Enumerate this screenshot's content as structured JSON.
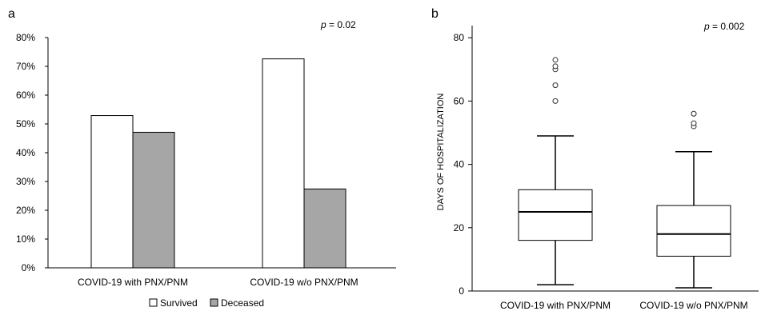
{
  "chart_data": [
    {
      "panel_label": "a",
      "type": "bar",
      "categories": [
        "COVID-19 with PNX/PNM",
        "COVID-19 w/o PNX/PNM"
      ],
      "series": [
        {
          "name": "Survived",
          "values": [
            52.9,
            72.6
          ],
          "color": "#ffffff"
        },
        {
          "name": "Deceased",
          "values": [
            47.1,
            27.4
          ],
          "color": "#a6a6a6"
        }
      ],
      "ylim": [
        0,
        80
      ],
      "yticks": [
        0,
        10,
        20,
        30,
        40,
        50,
        60,
        70,
        80
      ],
      "ytick_labels": [
        "0%",
        "10%",
        "20%",
        "30%",
        "40%",
        "50%",
        "60%",
        "70%",
        "80%"
      ],
      "xlabel": "",
      "ylabel": "",
      "annotation": {
        "p_label": "p",
        "p_value": " = 0.02"
      },
      "legend_position": "bottom",
      "grid": false
    },
    {
      "panel_label": "b",
      "type": "box",
      "categories": [
        "COVID-19 with PNX/PNM",
        "COVID-19 w/o PNX/PNM"
      ],
      "boxes": [
        {
          "whisker_low": 2,
          "q1": 16,
          "median": 25,
          "q3": 32,
          "whisker_high": 49,
          "outliers": [
            60,
            65,
            70,
            71,
            73
          ]
        },
        {
          "whisker_low": 1,
          "q1": 11,
          "median": 18,
          "q3": 27,
          "whisker_high": 44,
          "outliers": [
            52,
            53,
            56,
            56
          ]
        }
      ],
      "ylim": [
        0,
        84
      ],
      "yticks": [
        0,
        20,
        40,
        60,
        80
      ],
      "ytick_labels": [
        "0",
        "20",
        "40",
        "60",
        "80"
      ],
      "xlabel": "",
      "ylabel": "DAYS OF HOSPITALIZATION",
      "annotation": {
        "p_label": "p",
        "p_value": " = 0.002"
      },
      "grid": false
    }
  ]
}
